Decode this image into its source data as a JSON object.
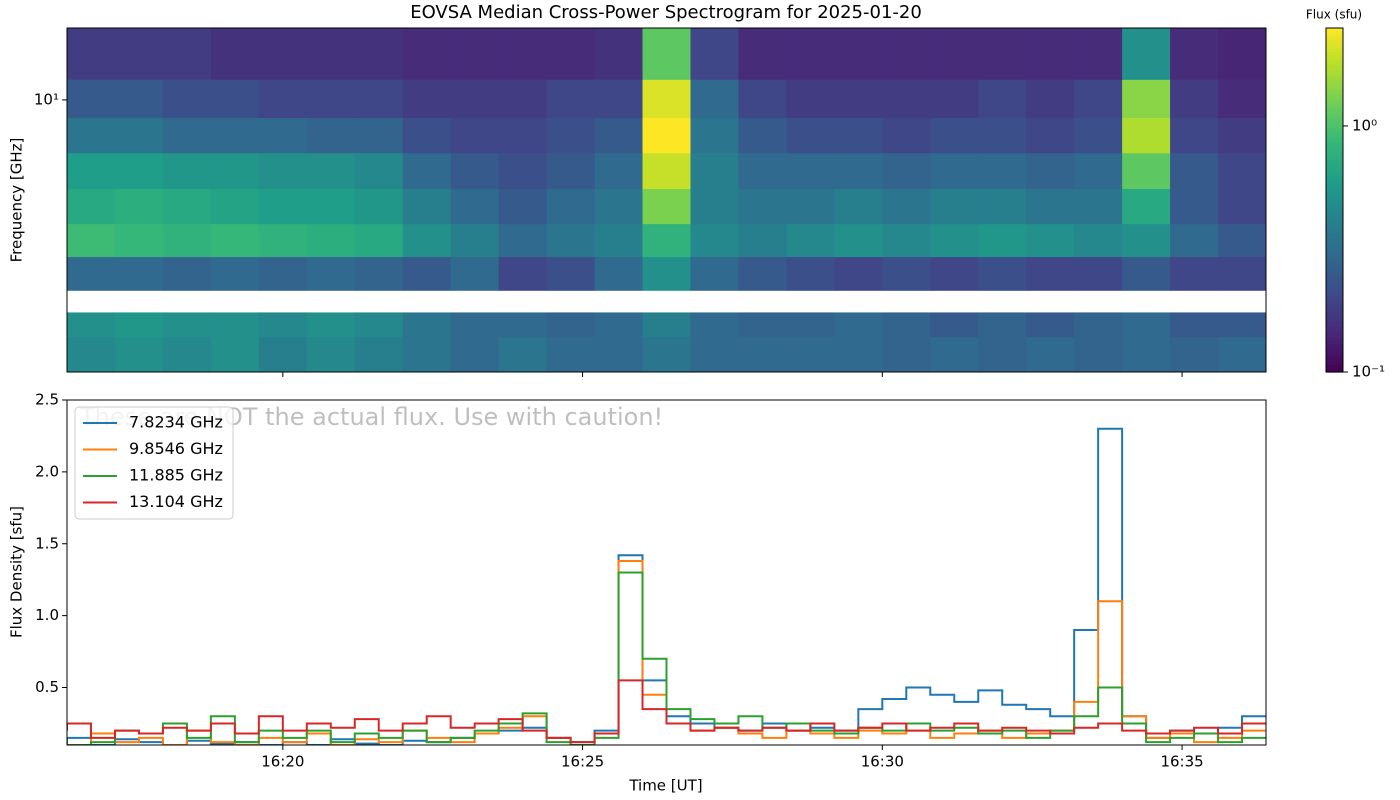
{
  "chart_data": [
    {
      "type": "heatmap",
      "title": "EOVSA Median Cross-Power Spectrogram for 2025-01-20",
      "ylabel": "Frequency [GHz]",
      "x_edges": [
        16.4,
        17.2,
        18.0,
        18.8,
        19.6,
        20.4,
        21.2,
        22.0,
        22.8,
        23.6,
        24.4,
        25.2,
        26.0,
        26.8,
        27.6,
        28.4,
        29.2,
        30.0,
        30.8,
        31.6,
        32.4,
        33.2,
        34.0,
        34.8,
        35.6,
        36.4
      ],
      "y_edges": [
        2.8,
        3.3,
        3.7,
        4.1,
        4.8,
        5.6,
        6.6,
        7.8,
        9.2,
        11.0,
        14.0
      ],
      "z": [
        [
          0.45,
          0.5,
          0.45,
          0.5,
          0.4,
          0.45,
          0.4,
          0.35,
          0.3,
          0.35,
          0.3,
          0.3,
          0.35,
          0.3,
          0.3,
          0.3,
          0.3,
          0.28,
          0.3,
          0.28,
          0.3,
          0.28,
          0.3,
          0.28,
          0.3
        ],
        [
          0.5,
          0.55,
          0.5,
          0.5,
          0.45,
          0.5,
          0.45,
          0.35,
          0.3,
          0.3,
          0.28,
          0.3,
          0.4,
          0.3,
          0.28,
          0.28,
          0.3,
          0.28,
          0.25,
          0.28,
          0.25,
          0.28,
          0.3,
          0.25,
          0.25
        ],
        [
          null,
          null,
          null,
          null,
          null,
          null,
          null,
          null,
          null,
          null,
          null,
          null,
          null,
          null,
          null,
          null,
          null,
          null,
          null,
          null,
          null,
          null,
          null,
          null,
          null
        ],
        [
          0.3,
          0.3,
          0.28,
          0.3,
          0.28,
          0.3,
          0.28,
          0.25,
          0.3,
          0.2,
          0.22,
          0.3,
          0.5,
          0.3,
          0.25,
          0.22,
          0.2,
          0.22,
          0.2,
          0.22,
          0.2,
          0.2,
          0.25,
          0.2,
          0.2
        ],
        [
          0.9,
          0.85,
          0.8,
          0.85,
          0.8,
          0.75,
          0.7,
          0.5,
          0.4,
          0.3,
          0.35,
          0.4,
          0.8,
          0.45,
          0.4,
          0.45,
          0.5,
          0.45,
          0.5,
          0.55,
          0.5,
          0.45,
          0.5,
          0.3,
          0.25
        ],
        [
          0.7,
          0.75,
          0.7,
          0.65,
          0.6,
          0.6,
          0.55,
          0.4,
          0.3,
          0.25,
          0.3,
          0.35,
          1.3,
          0.4,
          0.35,
          0.35,
          0.4,
          0.35,
          0.4,
          0.4,
          0.35,
          0.35,
          0.7,
          0.25,
          0.2
        ],
        [
          0.6,
          0.6,
          0.55,
          0.55,
          0.5,
          0.5,
          0.45,
          0.3,
          0.25,
          0.22,
          0.25,
          0.3,
          1.9,
          0.4,
          0.3,
          0.3,
          0.3,
          0.28,
          0.3,
          0.3,
          0.28,
          0.3,
          1.1,
          0.25,
          0.2
        ],
        [
          0.35,
          0.35,
          0.3,
          0.3,
          0.3,
          0.28,
          0.28,
          0.22,
          0.2,
          0.2,
          0.22,
          0.25,
          2.5,
          0.35,
          0.25,
          0.22,
          0.22,
          0.2,
          0.22,
          0.22,
          0.2,
          0.22,
          1.7,
          0.2,
          0.18
        ],
        [
          0.25,
          0.25,
          0.22,
          0.22,
          0.2,
          0.2,
          0.2,
          0.18,
          0.18,
          0.18,
          0.2,
          0.2,
          2.1,
          0.3,
          0.2,
          0.18,
          0.18,
          0.18,
          0.18,
          0.2,
          0.18,
          0.2,
          1.4,
          0.18,
          0.15
        ],
        [
          0.18,
          0.18,
          0.18,
          0.16,
          0.16,
          0.16,
          0.16,
          0.15,
          0.15,
          0.15,
          0.15,
          0.16,
          1.1,
          0.2,
          0.15,
          0.15,
          0.15,
          0.15,
          0.15,
          0.15,
          0.15,
          0.15,
          0.5,
          0.15,
          0.14
        ]
      ],
      "xlim": [
        16.4,
        36.4
      ],
      "xticks": [
        20,
        25,
        30,
        35
      ],
      "ylim": [
        2.8,
        14.0
      ],
      "yscale": "log",
      "yticks": [
        {
          "value": 10,
          "label": "10¹"
        }
      ],
      "cmap": "viridis",
      "clim": [
        0.1,
        2.5
      ],
      "colorbar": {
        "label": "Flux (sfu)",
        "scale": "log",
        "ticks": [
          {
            "value": 0.1,
            "label": "10⁻¹"
          },
          {
            "value": 1,
            "label": "10⁰"
          }
        ]
      }
    },
    {
      "type": "line",
      "drawstyle": "steps",
      "annotation": "These are NOT the actual flux. Use with caution!",
      "xlabel": "Time [UT]",
      "ylabel": "Flux Density [sfu]",
      "x": [
        16.4,
        16.8,
        17.2,
        17.6,
        18.0,
        18.4,
        18.8,
        19.2,
        19.6,
        20.0,
        20.4,
        20.8,
        21.2,
        21.6,
        22.0,
        22.4,
        22.8,
        23.2,
        23.6,
        24.0,
        24.4,
        24.8,
        25.2,
        25.6,
        26.0,
        26.4,
        26.8,
        27.2,
        27.6,
        28.0,
        28.4,
        28.8,
        29.2,
        29.6,
        30.0,
        30.4,
        30.8,
        31.2,
        31.6,
        32.0,
        32.4,
        32.8,
        33.2,
        33.6,
        34.0,
        34.4,
        34.8,
        35.2,
        35.6,
        36.0,
        36.4
      ],
      "series": [
        {
          "name": "7.8234 GHz",
          "color": "#1f77b4",
          "values": [
            0.12,
            0.15,
            0.1,
            0.14,
            0.12,
            0.1,
            0.13,
            0.11,
            0.12,
            0.1,
            0.12,
            0.1,
            0.14,
            0.11,
            0.1,
            0.13,
            0.12,
            0.15,
            0.18,
            0.2,
            0.22,
            0.15,
            0.12,
            0.2,
            1.42,
            0.55,
            0.3,
            0.25,
            0.22,
            0.2,
            0.25,
            0.2,
            0.22,
            0.2,
            0.35,
            0.42,
            0.5,
            0.45,
            0.4,
            0.48,
            0.38,
            0.35,
            0.3,
            0.9,
            2.3,
            0.3,
            0.15,
            0.2,
            0.18,
            0.22,
            0.3
          ]
        },
        {
          "name": "9.8546 GHz",
          "color": "#ff7f0e",
          "values": [
            0.12,
            0.1,
            0.18,
            0.12,
            0.15,
            0.1,
            0.2,
            0.12,
            0.1,
            0.15,
            0.12,
            0.18,
            0.1,
            0.14,
            0.12,
            0.2,
            0.15,
            0.12,
            0.18,
            0.22,
            0.3,
            0.15,
            0.1,
            0.18,
            1.38,
            0.45,
            0.25,
            0.2,
            0.22,
            0.18,
            0.15,
            0.2,
            0.18,
            0.15,
            0.2,
            0.18,
            0.2,
            0.15,
            0.18,
            0.2,
            0.15,
            0.18,
            0.2,
            0.4,
            1.1,
            0.3,
            0.15,
            0.18,
            0.12,
            0.15,
            0.2
          ]
        },
        {
          "name": "11.885 GHz",
          "color": "#2ca02c",
          "values": [
            0.15,
            0.1,
            0.12,
            0.2,
            0.18,
            0.25,
            0.15,
            0.3,
            0.12,
            0.2,
            0.15,
            0.2,
            0.12,
            0.18,
            0.15,
            0.2,
            0.12,
            0.15,
            0.2,
            0.25,
            0.32,
            0.12,
            0.1,
            0.15,
            1.3,
            0.7,
            0.35,
            0.28,
            0.25,
            0.3,
            0.22,
            0.25,
            0.2,
            0.18,
            0.22,
            0.2,
            0.25,
            0.2,
            0.22,
            0.18,
            0.2,
            0.15,
            0.2,
            0.3,
            0.5,
            0.25,
            0.12,
            0.15,
            0.18,
            0.12,
            0.15
          ]
        },
        {
          "name": "13.104 GHz",
          "color": "#d62728",
          "values": [
            0.2,
            0.25,
            0.15,
            0.2,
            0.18,
            0.22,
            0.2,
            0.25,
            0.18,
            0.3,
            0.2,
            0.25,
            0.22,
            0.28,
            0.2,
            0.25,
            0.3,
            0.22,
            0.25,
            0.28,
            0.2,
            0.15,
            0.12,
            0.18,
            0.55,
            0.35,
            0.25,
            0.2,
            0.22,
            0.2,
            0.22,
            0.2,
            0.25,
            0.2,
            0.22,
            0.25,
            0.2,
            0.22,
            0.25,
            0.2,
            0.22,
            0.2,
            0.18,
            0.22,
            0.25,
            0.2,
            0.18,
            0.2,
            0.22,
            0.18,
            0.25
          ]
        }
      ],
      "xlim": [
        16.4,
        36.4
      ],
      "xticks": [
        {
          "value": 20,
          "label": "16:20"
        },
        {
          "value": 25,
          "label": "16:25"
        },
        {
          "value": 30,
          "label": "16:30"
        },
        {
          "value": 35,
          "label": "16:35"
        }
      ],
      "ylim": [
        0.1,
        2.5
      ],
      "yticks": [
        0.5,
        {
          "value": 1,
          "label": "1.0"
        },
        1.5,
        {
          "value": 2,
          "label": "2.0"
        },
        2.5
      ],
      "legend": "upper left"
    }
  ]
}
